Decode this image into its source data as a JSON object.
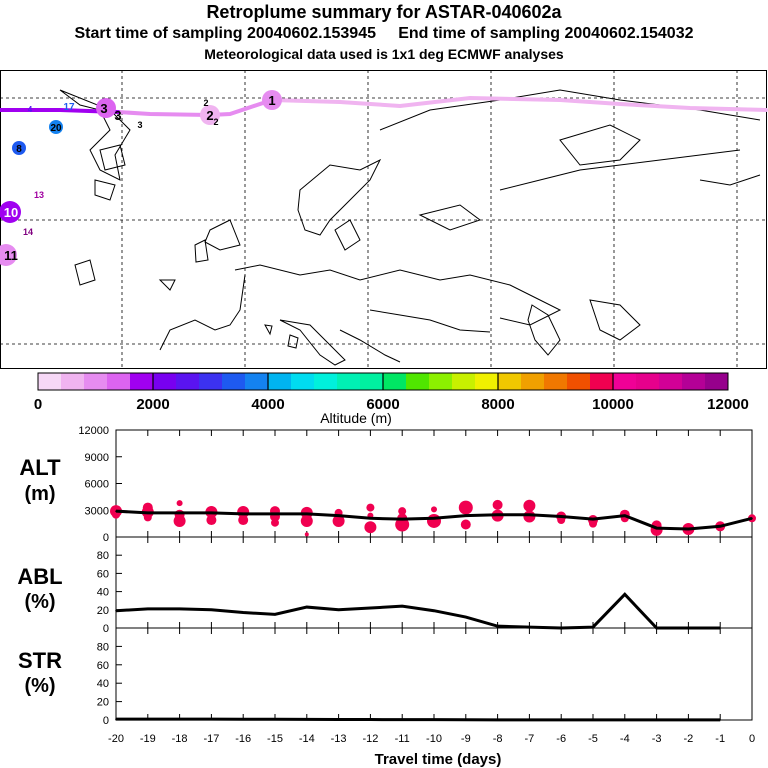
{
  "header": {
    "title": "Retroplume summary for ASTAR-040602a",
    "start_time": "Start time of sampling 20040602.153945",
    "end_time": "End time of sampling 20040602.154032",
    "met_data": "Meteorological data used is 1x1 deg ECMWF analyses"
  },
  "colorbar": {
    "label": "Altitude (m)",
    "tick_labels": [
      "0",
      "2000",
      "4000",
      "6000",
      "8000",
      "10000",
      "12000"
    ],
    "colors": [
      "#f6d8f6",
      "#f0b4f0",
      "#e68cf0",
      "#dc64f0",
      "#a000f0",
      "#7800f0",
      "#5a14f0",
      "#3c32f0",
      "#1e5af0",
      "#1482f0",
      "#00b4f0",
      "#00dcf0",
      "#00f0dc",
      "#00f0b4",
      "#00f0a0",
      "#00e664",
      "#50e600",
      "#8cf000",
      "#c8f000",
      "#f0f000",
      "#f0c800",
      "#f0a000",
      "#f07800",
      "#f05000",
      "#f00050",
      "#f00096",
      "#e6008c",
      "#d20096",
      "#b40096",
      "#96008c"
    ]
  },
  "map": {
    "day_labels": [
      "1",
      "2",
      "2",
      "2",
      "3",
      "3",
      "3",
      "8",
      "10",
      "11",
      "13",
      "14",
      "17",
      "20",
      "4"
    ]
  },
  "chart_data": [
    {
      "type": "line",
      "name": "ALT (m)",
      "ylabel": "ALT\n(m)",
      "ylim": [
        0,
        12000
      ],
      "yticks": [
        "0",
        "3000",
        "6000",
        "9000",
        "12000"
      ],
      "x": [
        -20,
        -19,
        -18,
        -17,
        -16,
        -15,
        -14,
        -13,
        -12,
        -11,
        -10,
        -9,
        -8,
        -7,
        -6,
        -5,
        -4,
        -3,
        -2,
        -1,
        0
      ],
      "values": [
        2900,
        2700,
        2700,
        2700,
        2600,
        2600,
        2600,
        2400,
        2100,
        2000,
        2100,
        2400,
        2500,
        2500,
        2300,
        2000,
        2400,
        1000,
        900,
        1200,
        2100
      ],
      "scatter_points": [
        [
          -20,
          2900,
          6
        ],
        [
          -20,
          2500,
          4
        ],
        [
          -19,
          3300,
          5
        ],
        [
          -19,
          2800,
          6
        ],
        [
          -19,
          2200,
          4
        ],
        [
          -18,
          2500,
          5
        ],
        [
          -18,
          1800,
          6
        ],
        [
          -18,
          3800,
          3
        ],
        [
          -17,
          2800,
          6
        ],
        [
          -17,
          1900,
          5
        ],
        [
          -16,
          2800,
          6
        ],
        [
          -16,
          1900,
          5
        ],
        [
          -15,
          2900,
          5
        ],
        [
          -15,
          2300,
          5
        ],
        [
          -15,
          1600,
          4
        ],
        [
          -14,
          2700,
          6
        ],
        [
          -14,
          1800,
          6
        ],
        [
          -14,
          300,
          2
        ],
        [
          -13,
          2700,
          4
        ],
        [
          -13,
          1800,
          6
        ],
        [
          -12,
          3300,
          4
        ],
        [
          -12,
          2400,
          3
        ],
        [
          -12,
          1100,
          6
        ],
        [
          -11,
          2900,
          4
        ],
        [
          -11,
          2100,
          5
        ],
        [
          -11,
          1400,
          7
        ],
        [
          -10,
          3100,
          3
        ],
        [
          -10,
          1800,
          7
        ],
        [
          -9,
          3300,
          7
        ],
        [
          -9,
          1400,
          5
        ],
        [
          -8,
          3600,
          5
        ],
        [
          -8,
          2400,
          6
        ],
        [
          -7,
          3500,
          6
        ],
        [
          -7,
          2300,
          6
        ],
        [
          -6,
          2300,
          5
        ],
        [
          -6,
          1900,
          4
        ],
        [
          -5,
          1900,
          5
        ],
        [
          -5,
          1500,
          4
        ],
        [
          -4,
          2500,
          5
        ],
        [
          -4,
          2100,
          4
        ],
        [
          -3,
          1300,
          5
        ],
        [
          -3,
          800,
          6
        ],
        [
          -2,
          900,
          6
        ],
        [
          -1,
          1200,
          5
        ],
        [
          0,
          2100,
          4
        ]
      ]
    },
    {
      "type": "line",
      "name": "ABL (%)",
      "ylabel": "ABL\n(%)",
      "ylim": [
        0,
        100
      ],
      "yticks": [
        "0",
        "20",
        "40",
        "60",
        "80"
      ],
      "x": [
        -20,
        -19,
        -18,
        -17,
        -16,
        -15,
        -14,
        -13,
        -12,
        -11,
        -10,
        -9,
        -8,
        -7,
        -6,
        -5,
        -4,
        -3,
        -2,
        -1
      ],
      "values": [
        19,
        21,
        21,
        20,
        17,
        15,
        23,
        20,
        22,
        24,
        19,
        12,
        2,
        1,
        0,
        1,
        37,
        0,
        0,
        0
      ]
    },
    {
      "type": "line",
      "name": "STR (%)",
      "ylabel": "STR\n(%)",
      "ylim": [
        0,
        100
      ],
      "yticks": [
        "0",
        "20",
        "40",
        "60",
        "80"
      ],
      "x": [
        -20,
        -19,
        -18,
        -17,
        -16,
        -15,
        -14,
        -13,
        -12,
        -11,
        -10,
        -9,
        -8,
        -7,
        -6,
        -5,
        -4,
        -3,
        -2,
        -1
      ],
      "values": [
        1,
        1,
        1,
        1,
        0.8,
        0.8,
        0.7,
        0.6,
        0.5,
        0.4,
        0.4,
        0.3,
        0.2,
        0.2,
        0.2,
        0.2,
        0.2,
        0.2,
        0.1,
        0.1
      ]
    }
  ],
  "xaxis": {
    "label": "Travel time (days)",
    "tick_labels": [
      "-20",
      "-19",
      "-18",
      "-17",
      "-16",
      "-15",
      "-14",
      "-13",
      "-12",
      "-11",
      "-10",
      "-9",
      "-8",
      "-7",
      "-6",
      "-5",
      "-4",
      "-3",
      "-2",
      "-1",
      "0"
    ]
  }
}
